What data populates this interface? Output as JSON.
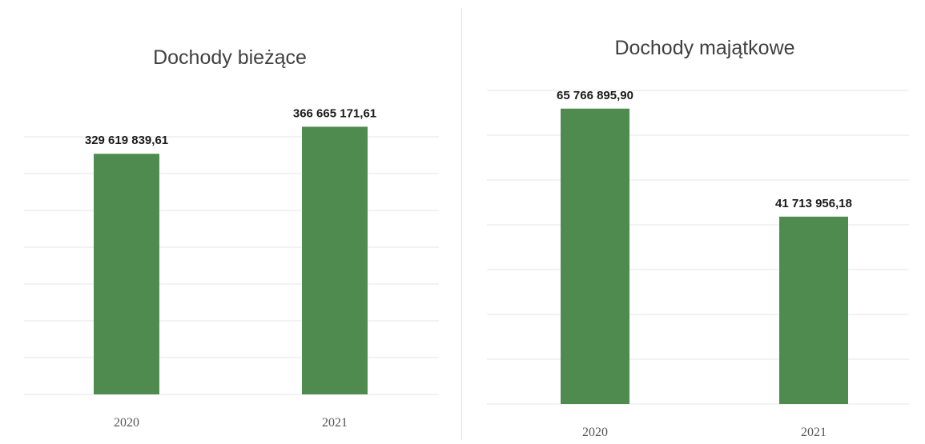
{
  "colors": {
    "bar": "#4f8a4f",
    "grid": "#e6e6e6",
    "title": "#404040"
  },
  "chart_data": [
    {
      "type": "bar",
      "title": "Dochody bieżące",
      "categories": [
        "2020",
        "2021"
      ],
      "values": [
        329619839.61,
        366665171.61
      ],
      "value_labels": [
        "329 619 839,61",
        "366 665 171,61"
      ],
      "xlabel": "",
      "ylabel": "",
      "ylim": [
        0,
        400000000
      ],
      "grid": true,
      "legend": "none"
    },
    {
      "type": "bar",
      "title": "Dochody majątkowe",
      "categories": [
        "2020",
        "2021"
      ],
      "values": [
        65766895.9,
        41713956.18
      ],
      "value_labels": [
        "65 766 895,90",
        "41 713 956,18"
      ],
      "xlabel": "",
      "ylabel": "",
      "ylim": [
        0,
        70000000
      ],
      "grid": true,
      "legend": "none"
    }
  ]
}
